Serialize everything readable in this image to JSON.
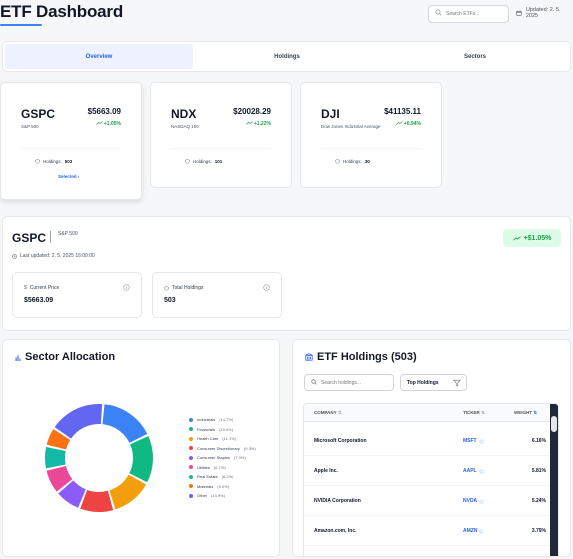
{
  "header": {
    "title": "ETF Dashboard",
    "search_placeholder": "Search ETFs...",
    "updated": "Updated: 2. 5. 2025"
  },
  "tabs": [
    {
      "label": "Overview",
      "active": true
    },
    {
      "label": "Holdings",
      "active": false
    },
    {
      "label": "Sectors",
      "active": false
    }
  ],
  "etfs": [
    {
      "symbol": "GSPC",
      "name": "S&P 500",
      "price": "$5663.09",
      "change": "+1.05%",
      "holdings_label": "Holdings:",
      "holdings": "503",
      "selected_label": "Selected"
    },
    {
      "symbol": "NDX",
      "name": "NASDAQ 100",
      "price": "$20028.29",
      "change": "+1.22%",
      "holdings_label": "Holdings:",
      "holdings": "101"
    },
    {
      "symbol": "DJI",
      "name": "Dow Jones Industrial Average",
      "price": "$41135.11",
      "change": "+0.94%",
      "holdings_label": "Holdings:",
      "holdings": "30"
    }
  ],
  "detail": {
    "symbol": "GSPC",
    "name": "S&P 500",
    "last_updated": "Last updated: 2. 5. 2025 16:00:00",
    "change": "+$1.05%",
    "current_price_label": "Current Price",
    "current_price": "$5663.09",
    "total_holdings_label": "Total Holdings",
    "total_holdings": "503"
  },
  "sector_panel": {
    "title": "Sector Allocation"
  },
  "sectors": [
    {
      "name": "Industrials",
      "value": "(14.7%)",
      "pct": 14.7,
      "color": "#3b82f6"
    },
    {
      "name": "Financials",
      "value": "(13.0%)",
      "pct": 13.0,
      "color": "#10b981"
    },
    {
      "name": "Health Care",
      "value": "(11.1%)",
      "pct": 11.1,
      "color": "#f59e0b"
    },
    {
      "name": "Consumer Discretionary",
      "value": "(9.3%)",
      "pct": 9.3,
      "color": "#ef4444"
    },
    {
      "name": "Consumer Staples",
      "value": "(7.0%)",
      "pct": 7.0,
      "color": "#8b5cf6"
    },
    {
      "name": "Utilities",
      "value": "(6.7%)",
      "pct": 6.7,
      "color": "#ec4899"
    },
    {
      "name": "Real Estate",
      "value": "(6.2%)",
      "pct": 6.2,
      "color": "#14b8a6"
    },
    {
      "name": "Materials",
      "value": "(5.0%)",
      "pct": 5.0,
      "color": "#f97316"
    },
    {
      "name": "Other",
      "value": "(14.9%)",
      "pct": 14.9,
      "color": "#6366f1"
    }
  ],
  "holdings_panel": {
    "title": "ETF Holdings (503)",
    "search_placeholder": "Search holdings...",
    "filter_value": "Top Holdings",
    "columns": {
      "company": "COMPANY",
      "ticker": "TICKER",
      "weight": "WEIGHT"
    },
    "rows": [
      {
        "company": "Microsoft Corporation",
        "ticker": "MSFT",
        "weight": "6.16%"
      },
      {
        "company": "Apple Inc.",
        "ticker": "AAPL",
        "weight": "5.81%"
      },
      {
        "company": "NVIDIA Corporation",
        "ticker": "NVDA",
        "weight": "5.24%"
      },
      {
        "company": "Amazon.com, Inc.",
        "ticker": "AMZN",
        "weight": "3.79%"
      }
    ]
  }
}
